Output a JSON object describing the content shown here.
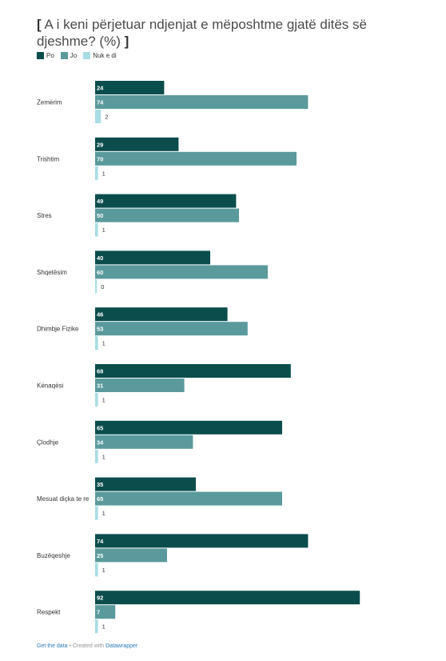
{
  "chart_data": {
    "type": "bar",
    "orientation": "horizontal",
    "title_open": "[",
    "title": "A i keni përjetuar ndjenjat e mëposhtme gjatë ditës së djeshme? (%)",
    "title_close": "]",
    "categories": [
      "Zemërim",
      "Trishtim",
      "Stres",
      "Shqetësim",
      "Dhimbje Fizike",
      "Kënaqësi",
      "Çlodhje",
      "Mesuat diçka te re",
      "Buzëqeshje",
      "Respekt"
    ],
    "series": [
      {
        "name": "Po",
        "color": "#0b4d4d",
        "values": [
          24,
          29,
          49,
          40,
          46,
          68,
          65,
          35,
          74,
          92
        ]
      },
      {
        "name": "Jo",
        "color": "#5a9a9c",
        "values": [
          74,
          70,
          50,
          60,
          53,
          31,
          34,
          65,
          25,
          7
        ]
      },
      {
        "name": "Nuk e di",
        "color": "#a8dde4",
        "values": [
          2,
          1,
          1,
          0,
          1,
          1,
          1,
          1,
          1,
          1
        ]
      }
    ],
    "xlim": [
      0,
      100
    ],
    "grid": false,
    "legend_position": "top-left"
  },
  "footer": {
    "get_data": "Get the data",
    "separator": " • Created with ",
    "datawrapper": "Datawrapper"
  }
}
